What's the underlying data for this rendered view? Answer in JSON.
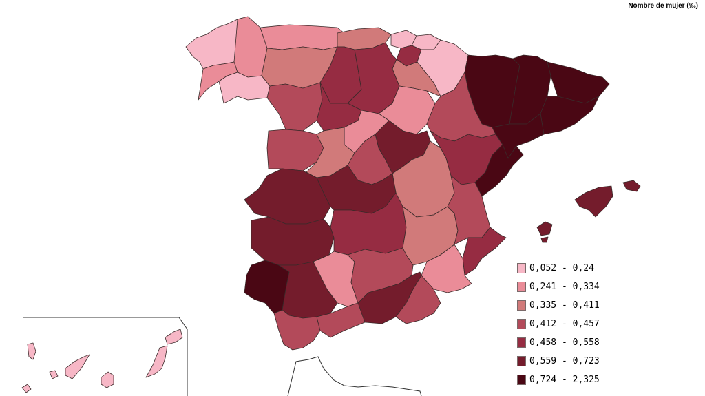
{
  "title": "Nombre de mujer (‰)",
  "legend": [
    {
      "label": "0,052 - 0,24",
      "color": "#f7b7c6"
    },
    {
      "label": "0,241 - 0,334",
      "color": "#ea8c98"
    },
    {
      "label": "0,335 - 0,411",
      "color": "#d17a7a"
    },
    {
      "label": "0,412 - 0,457",
      "color": "#b34a5a"
    },
    {
      "label": "0,458 - 0,558",
      "color": "#962c42"
    },
    {
      "label": "0,559 - 0,723",
      "color": "#741c2c"
    },
    {
      "label": "0,724 - 2,325",
      "color": "#4a0714"
    }
  ]
}
